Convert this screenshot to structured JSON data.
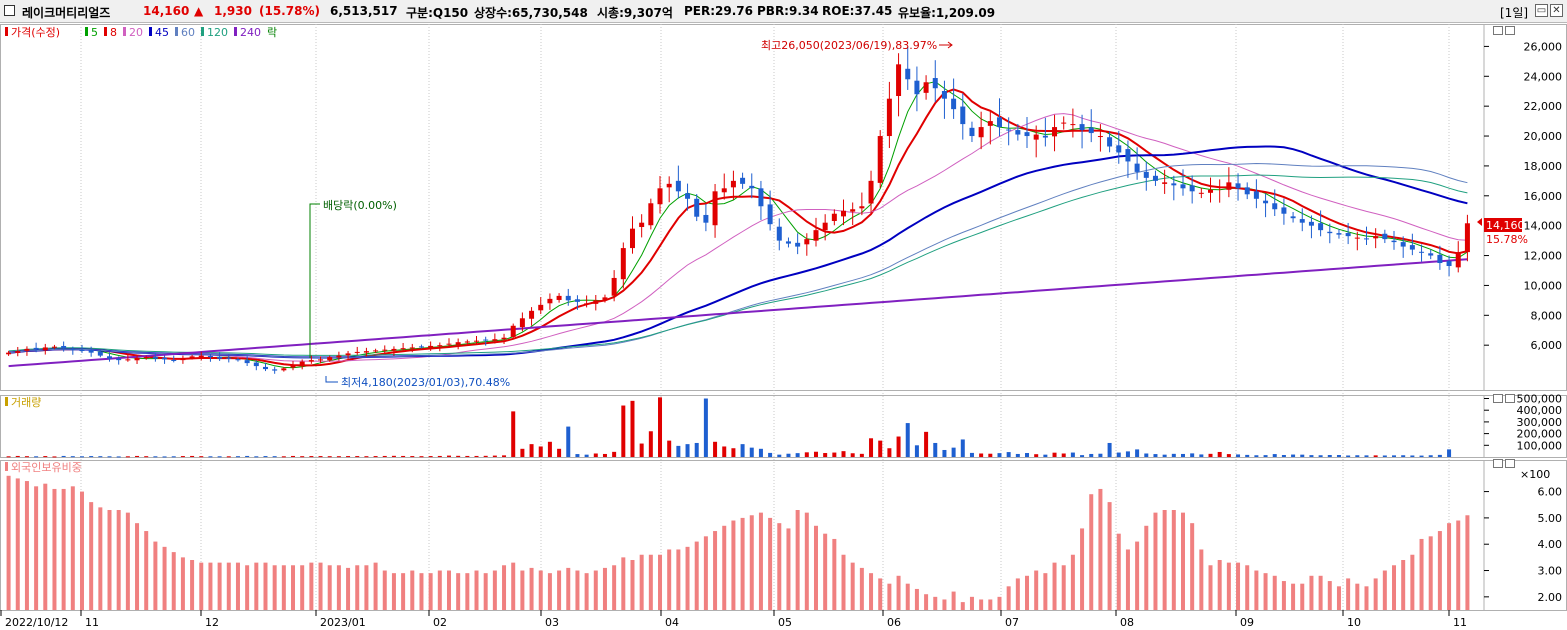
{
  "header": {
    "name": "레이크머티리얼즈",
    "price": "14,160",
    "change_arrow": "▲",
    "change": "1,930",
    "change_pct": "(15.78%)",
    "volume": "6,513,517",
    "market": "구분:Q150",
    "shares": "상장수:65,730,548",
    "mcap": "시총:9,307억",
    "per": "PER:29.76",
    "pbr": "PBR:9.34",
    "roe": "ROE:37.45",
    "reserve": "유보율:1,209.09",
    "period": "[1일]",
    "minimize_icon": "▭",
    "close_icon": "✕"
  },
  "legend": {
    "price_label": "가격(수정)",
    "ma": [
      {
        "label": "5",
        "color": "#00a000"
      },
      {
        "label": "8",
        "color": "#e00000"
      },
      {
        "label": "20",
        "color": "#d060c0"
      },
      {
        "label": "45",
        "color": "#0000c0"
      },
      {
        "label": "60",
        "color": "#6080c0"
      },
      {
        "label": "120",
        "color": "#20a080"
      },
      {
        "label": "240",
        "color": "#8020c0"
      }
    ],
    "fall_label": "락"
  },
  "annotations": {
    "high": "최고26,050(2023/06/19),83.97%",
    "low": "최저4,180(2023/01/03),70.48%",
    "dividend": "배당락(0.00%)",
    "last_price_tag": "14,160",
    "last_pct_tag": "15.78%"
  },
  "volume_panel": {
    "title": "거래량",
    "unit": "×100"
  },
  "foreign_panel": {
    "title": "외국인보유비중"
  },
  "colors": {
    "up": "#e00000",
    "down": "#1e5fd0",
    "foreign": "#f08080"
  },
  "chart_data": [
    {
      "type": "candlestick",
      "title": "가격(수정)",
      "x_labels": [
        "2022/10/12",
        "11",
        "12",
        "2023/01",
        "02",
        "03",
        "04",
        "05",
        "06",
        "07",
        "08",
        "09",
        "10",
        "11"
      ],
      "y_ticks": [
        6000,
        8000,
        10000,
        12000,
        14000,
        16000,
        18000,
        20000,
        22000,
        24000,
        26000
      ],
      "y_tick_labels": [
        "6,000",
        "8,000",
        "10,000",
        "12,000",
        "14,000",
        "16,000",
        "18,000",
        "20,000",
        "22,000",
        "24,000",
        "26,000"
      ],
      "ylim": [
        3000,
        27500
      ],
      "close": [
        5500,
        5600,
        5750,
        5700,
        5850,
        5900,
        5800,
        5700,
        5650,
        5500,
        5300,
        5100,
        5000,
        5050,
        5150,
        5200,
        5100,
        5050,
        5000,
        5100,
        5250,
        5300,
        5200,
        5100,
        5100,
        5000,
        4800,
        4600,
        4400,
        4300,
        4450,
        4700,
        4900,
        5000,
        5050,
        5200,
        5300,
        5450,
        5550,
        5600,
        5650,
        5700,
        5750,
        5800,
        5850,
        5900,
        5950,
        6000,
        6100,
        6200,
        6250,
        6300,
        6350,
        6400,
        6500,
        7300,
        7800,
        8300,
        8700,
        9100,
        9300,
        9000,
        8900,
        8800,
        9000,
        9200,
        10500,
        12500,
        13800,
        14200,
        15500,
        16500,
        16800,
        16300,
        15800,
        14600,
        14200,
        16300,
        16500,
        17000,
        16800,
        16500,
        15300,
        14100,
        13000,
        12800,
        12600,
        13100,
        13700,
        14200,
        14800,
        15000,
        15100,
        15300,
        17000,
        20000,
        22500,
        24800,
        23800,
        22800,
        23600,
        23200,
        22500,
        21800,
        20800,
        20000,
        20600,
        21000,
        20600,
        20400,
        20100,
        20000,
        20100,
        19900,
        20600,
        20900,
        20800,
        20400,
        20200,
        20000,
        19300,
        18900,
        18300,
        17600,
        17200,
        17000,
        16900,
        16700,
        16500,
        16300,
        16200,
        16400,
        16600,
        16900,
        16500,
        16100,
        15800,
        15500,
        15100,
        14800,
        14500,
        14200,
        14000,
        13700,
        13500,
        13400,
        13300,
        13200,
        13100,
        13300,
        13100,
        12900,
        12600,
        12400,
        12200,
        12000,
        11500,
        11300,
        12230,
        14160
      ]
    },
    {
      "type": "bar",
      "title": "거래량",
      "unit": "×100",
      "y_ticks": [
        100000,
        200000,
        300000,
        400000,
        500000
      ],
      "y_tick_labels": [
        "100,000",
        "200,000",
        "300,000",
        "400,000",
        "500,000"
      ],
      "ylim": [
        0,
        530000
      ],
      "values": [
        6000,
        9000,
        7000,
        6000,
        8000,
        5000,
        9000,
        7000,
        6000,
        8000,
        7000,
        6000,
        5000,
        6000,
        9000,
        7000,
        6000,
        5000,
        6000,
        8000,
        9000,
        7000,
        6000,
        6000,
        6000,
        7000,
        9000,
        6000,
        8000,
        7000,
        6000,
        9000,
        7000,
        8000,
        8000,
        7000,
        7000,
        8000,
        8000,
        7000,
        8000,
        9000,
        10000,
        9000,
        8000,
        7000,
        8000,
        9000,
        12000,
        10000,
        9000,
        9000,
        10000,
        12000,
        14000,
        390000,
        70000,
        110000,
        90000,
        130000,
        70000,
        260000,
        25000,
        20000,
        30000,
        26000,
        44000,
        440000,
        480000,
        115000,
        220000,
        510000,
        140000,
        95000,
        110000,
        120000,
        500000,
        130000,
        90000,
        75000,
        110000,
        80000,
        70000,
        35000,
        20000,
        28000,
        33000,
        40000,
        45000,
        34000,
        38000,
        50000,
        32000,
        27000,
        160000,
        140000,
        75000,
        175000,
        290000,
        100000,
        215000,
        120000,
        60000,
        80000,
        150000,
        35000,
        30000,
        28000,
        33000,
        42000,
        26000,
        34000,
        24000,
        20000,
        37000,
        30000,
        38000,
        16000,
        26000,
        28000,
        120000,
        38000,
        48000,
        65000,
        30000,
        25000,
        20000,
        27000,
        26000,
        31000,
        22000,
        27000,
        43000,
        25000,
        22000,
        18000,
        15000,
        16000,
        25000,
        17000,
        21000,
        20000,
        16000,
        15000,
        17000,
        17000,
        13000,
        15000,
        14000,
        14000,
        13000,
        14000,
        15000,
        13000,
        12000,
        15000,
        18000,
        65000
      ]
    },
    {
      "type": "bar",
      "title": "외국인보유비중",
      "y_ticks": [
        2,
        3,
        4,
        5,
        6
      ],
      "y_tick_labels": [
        "2.00",
        "3.00",
        "4.00",
        "5.00",
        "6.00"
      ],
      "ylim": [
        1.5,
        7.2
      ],
      "values": [
        6.6,
        6.5,
        6.4,
        6.2,
        6.3,
        6.1,
        6.1,
        6.2,
        6.0,
        5.6,
        5.4,
        5.3,
        5.3,
        5.2,
        4.8,
        4.5,
        4.1,
        3.9,
        3.7,
        3.5,
        3.4,
        3.3,
        3.3,
        3.3,
        3.3,
        3.3,
        3.2,
        3.3,
        3.3,
        3.2,
        3.2,
        3.2,
        3.2,
        3.3,
        3.3,
        3.2,
        3.2,
        3.1,
        3.2,
        3.2,
        3.3,
        3.0,
        2.9,
        2.9,
        3.0,
        2.9,
        2.9,
        3.0,
        3.0,
        2.9,
        2.9,
        3.0,
        2.9,
        3.0,
        3.2,
        3.3,
        3.0,
        3.1,
        3.0,
        2.9,
        3.0,
        3.1,
        3.0,
        2.9,
        3.0,
        3.1,
        3.2,
        3.5,
        3.4,
        3.6,
        3.6,
        3.6,
        3.8,
        3.8,
        3.9,
        4.1,
        4.3,
        4.5,
        4.7,
        4.9,
        5.0,
        5.1,
        5.2,
        5.0,
        4.8,
        4.6,
        5.3,
        5.2,
        4.7,
        4.4,
        4.2,
        3.6,
        3.3,
        3.1,
        2.9,
        2.7,
        2.5,
        2.8,
        2.5,
        2.3,
        2.1,
        2.0,
        1.9,
        2.2,
        1.8,
        2.0,
        1.9,
        1.9,
        2.0,
        2.4,
        2.7,
        2.8,
        3.0,
        2.9,
        3.3,
        3.2,
        3.6,
        4.6,
        5.9,
        6.1,
        5.6,
        4.4,
        3.8,
        4.1,
        4.7,
        5.2,
        5.3,
        5.3,
        5.2,
        4.8,
        3.8,
        3.2,
        3.4,
        3.3,
        3.3,
        3.2,
        3.0,
        2.9,
        2.8,
        2.6,
        2.5,
        2.5,
        2.8,
        2.8,
        2.6,
        2.4,
        2.7,
        2.5,
        2.4,
        2.7,
        3.0,
        3.2,
        3.4,
        3.6,
        4.2,
        4.3,
        4.5,
        4.8,
        4.9,
        5.1
      ]
    }
  ]
}
